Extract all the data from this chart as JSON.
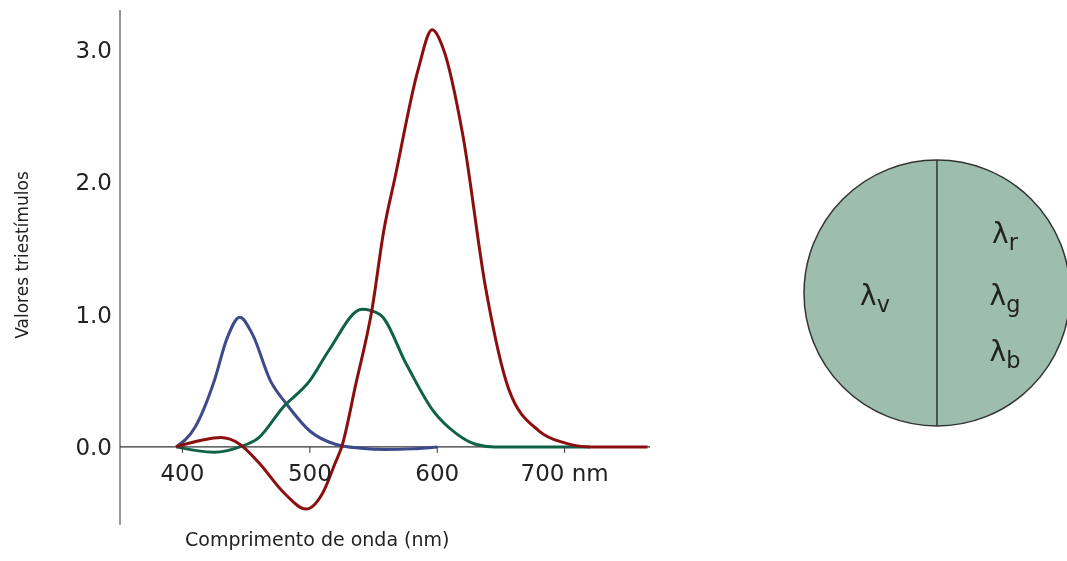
{
  "chart_data": {
    "type": "line",
    "xlabel": "Comprimento de onda (nm)",
    "ylabel": "Valores triestímulos",
    "xlim": [
      351,
      767
    ],
    "ylim": [
      -0.59,
      3.3
    ],
    "xticks": [
      400,
      500,
      600,
      {
        "value": 700,
        "label": "700 nm"
      }
    ],
    "yticks": [
      {
        "value": 0,
        "label": "0.0"
      },
      {
        "value": 1,
        "label": "1.0"
      },
      {
        "value": 2,
        "label": "2.0"
      },
      {
        "value": 3,
        "label": "3.0"
      }
    ],
    "marker": "none",
    "line_style": "solid",
    "series": [
      {
        "color": "#3b4a8a",
        "x": [
          395,
          410,
          425,
          435,
          445,
          455,
          469,
          482,
          500,
          520,
          540,
          560,
          580,
          600
        ],
        "values": [
          0,
          0.15,
          0.5,
          0.82,
          0.98,
          0.85,
          0.5,
          0.32,
          0.12,
          0.02,
          -0.01,
          -0.02,
          -0.015,
          0
        ]
      },
      {
        "color": "#0f6148",
        "x": [
          395,
          425,
          445,
          460,
          479,
          500,
          515,
          541,
          555,
          576,
          597,
          615,
          630,
          645,
          720
        ],
        "values": [
          0,
          -0.04,
          0,
          0.07,
          0.3,
          0.5,
          0.73,
          1.04,
          1.0,
          0.62,
          0.27,
          0.1,
          0.02,
          0,
          0
        ]
      },
      {
        "color": "#8b0f0f",
        "x": [
          395,
          415,
          430,
          445,
          460,
          480,
          497,
          510,
          520,
          525,
          536,
          549,
          558,
          567,
          585,
          596,
          605,
          620,
          638,
          656,
          680,
          700,
          720,
          765
        ],
        "values": [
          0,
          0.05,
          0.07,
          0.02,
          -0.12,
          -0.35,
          -0.47,
          -0.35,
          -0.12,
          0,
          0.47,
          1.05,
          1.63,
          2.04,
          2.85,
          3.15,
          3.0,
          2.36,
          1.2,
          0.44,
          0.12,
          0.03,
          0,
          0
        ]
      }
    ],
    "annotations": [
      "λ$_{v}$",
      "λ$_{r}$",
      "λ$_{g}$",
      "λ$_{b}$"
    ]
  }
}
